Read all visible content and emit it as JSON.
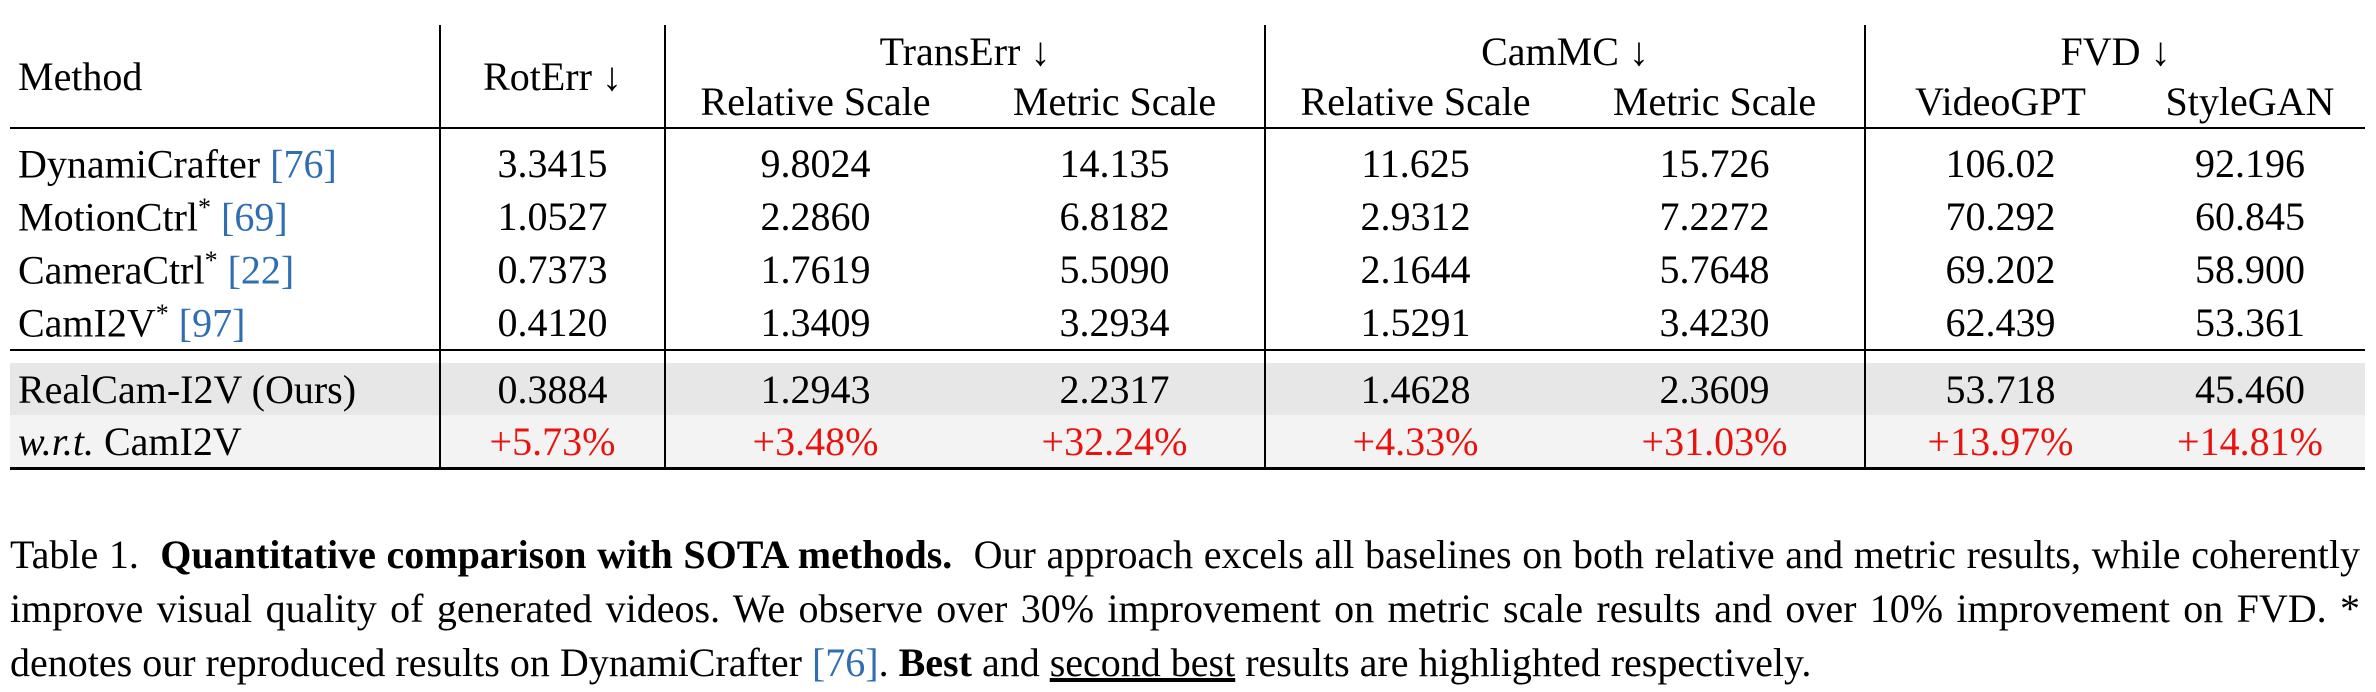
{
  "table": {
    "header": {
      "method": "Method",
      "rot_err": "RotErr ↓",
      "trans_err": "TransErr ↓",
      "cam_mc": "CamMC ↓",
      "fvd": "FVD ↓",
      "relative_scale": "Relative Scale",
      "metric_scale": "Metric Scale",
      "videogpt": "VideoGPT",
      "stylegan": "StyleGAN"
    },
    "baselines": [
      {
        "name": "DynamiCrafter",
        "sup": "",
        "ref": "[76]",
        "values": [
          "3.3415",
          "9.8024",
          "14.135",
          "11.625",
          "15.726",
          "106.02",
          "92.196"
        ]
      },
      {
        "name": "MotionCtrl",
        "sup": "*",
        "ref": "[69]",
        "values": [
          "1.0527",
          "2.2860",
          "6.8182",
          "2.9312",
          "7.2272",
          "70.292",
          "60.845"
        ]
      },
      {
        "name": "CameraCtrl",
        "sup": "*",
        "ref": "[22]",
        "values": [
          "0.7373",
          "1.7619",
          "5.5090",
          "2.1644",
          "5.7648",
          "69.202",
          "58.900"
        ]
      },
      {
        "name": "CamI2V",
        "sup": "*",
        "ref": "[97]",
        "values": [
          "0.4120",
          "1.3409",
          "3.2934",
          "1.5291",
          "3.4230",
          "62.439",
          "53.361"
        ]
      }
    ],
    "ours": {
      "name": "RealCam-I2V (Ours)",
      "values": [
        "0.3884",
        "1.2943",
        "2.2317",
        "1.4628",
        "2.3609",
        "53.718",
        "45.460"
      ]
    },
    "delta": {
      "prefix_italic": "w.r.t.",
      "name": "CamI2V",
      "values": [
        "+5.73%",
        "+3.48%",
        "+32.24%",
        "+4.33%",
        "+31.03%",
        "+13.97%",
        "+14.81%"
      ]
    }
  },
  "caption": {
    "label": "Table 1.",
    "bold_title": "Quantitative comparison with SOTA methods.",
    "text1": "Our approach excels all baselines on both relative and metric results, while coherently improve visual quality of generated videos. We observe over 30% improvement on metric scale results and over 10% improvement on FVD. * denotes our reproduced results on DynamiCrafter",
    "ref": "[76]",
    "text2": ".",
    "best": "Best",
    "and": "and",
    "second_best": "second best",
    "text3": "results are highlighted respectively."
  },
  "colors": {
    "link": "#2f6eb3",
    "improvement": "#e8130e",
    "highlight": "#e7e7e7"
  }
}
